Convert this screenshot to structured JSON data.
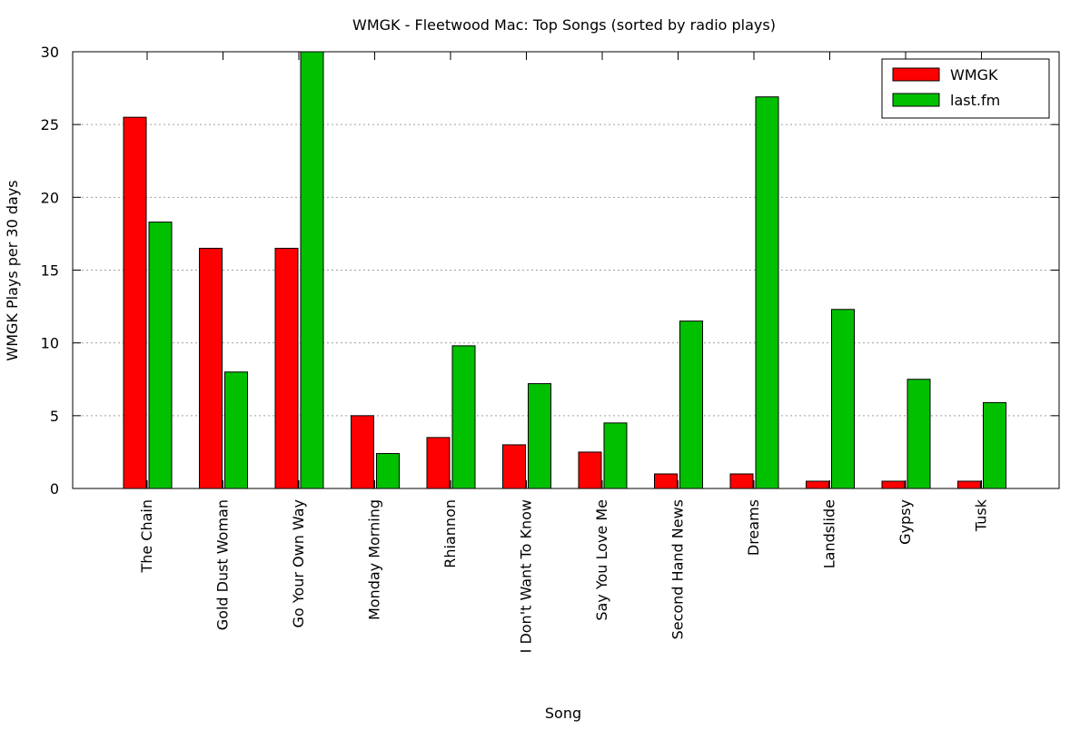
{
  "chart_data": {
    "type": "bar",
    "title": "WMGK - Fleetwood Mac: Top Songs (sorted by radio plays)",
    "xlabel": "Song",
    "ylabel": "WMGK Plays per 30 days",
    "ylim": [
      0,
      30
    ],
    "yticks": [
      0,
      5,
      10,
      15,
      20,
      25,
      30
    ],
    "grid": "horizontal dotted",
    "legend_position": "top-right",
    "categories": [
      "The Chain",
      "Gold Dust Woman",
      "Go Your Own Way",
      "Monday Morning",
      "Rhiannon",
      "I Don't Want To Know",
      "Say You Love Me",
      "Second Hand News",
      "Dreams",
      "Landslide",
      "Gypsy",
      "Tusk"
    ],
    "series": [
      {
        "name": "WMGK",
        "color": "#ff0000",
        "values": [
          25.5,
          16.5,
          16.5,
          5,
          3.5,
          3,
          2.5,
          1,
          1,
          0.5,
          0.5,
          0.5
        ]
      },
      {
        "name": "last.fm",
        "color": "#00c000",
        "values": [
          18.3,
          8,
          30,
          2.4,
          9.8,
          7.2,
          4.5,
          11.5,
          26.9,
          12.3,
          7.5,
          5.9
        ]
      }
    ]
  }
}
